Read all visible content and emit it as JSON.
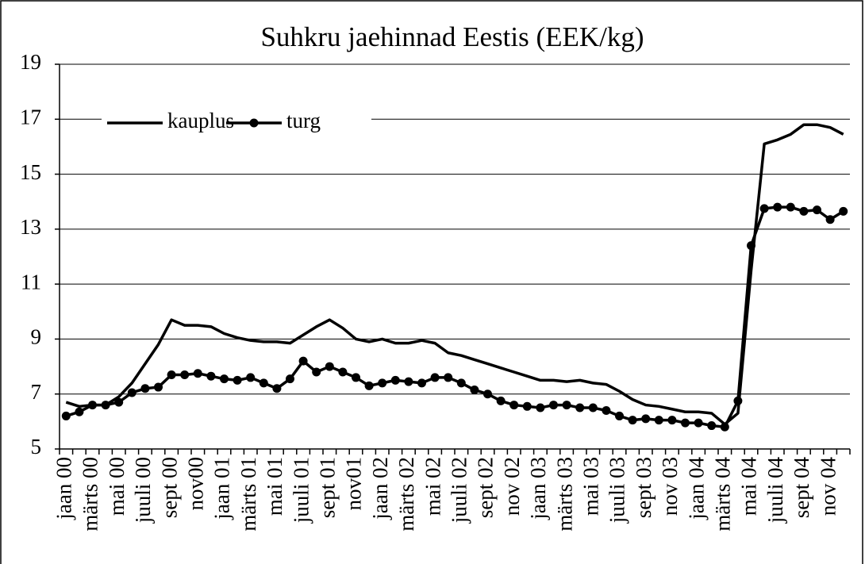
{
  "chart_data": {
    "type": "line",
    "title": "Suhkru jaehinnad Eestis (EEK/kg)",
    "categories": [
      "jaan 00",
      null,
      "märts 00",
      null,
      "mai 00",
      null,
      "juuli 00",
      null,
      "sept 00",
      null,
      "nov00",
      null,
      "jaan 01",
      null,
      "märts 01",
      null,
      "mai 01",
      null,
      "juuli 01",
      null,
      "sept 01",
      null,
      "nov01",
      null,
      "jaan 02",
      null,
      "märts 02",
      null,
      "mai 02",
      null,
      "juuli 02",
      null,
      "sept 02",
      null,
      "nov 02",
      null,
      "jaan 03",
      null,
      "märts 03",
      null,
      "mai 03",
      null,
      "juuli 03",
      null,
      "sept 03",
      null,
      "nov 03",
      null,
      "jaan 04",
      null,
      "märts 04",
      null,
      "mai 04",
      null,
      "juuli 04",
      null,
      "sept 04",
      null,
      "nov 04",
      null
    ],
    "series": [
      {
        "name": "kauplus",
        "color": "#000000",
        "marker": "none",
        "values": [
          6.7,
          6.55,
          6.6,
          6.6,
          6.9,
          7.4,
          8.1,
          8.8,
          9.7,
          9.5,
          9.5,
          9.45,
          9.2,
          9.05,
          8.95,
          8.9,
          8.9,
          8.85,
          9.15,
          9.45,
          9.7,
          9.4,
          9.0,
          8.9,
          9.0,
          8.85,
          8.85,
          8.95,
          8.85,
          8.5,
          8.4,
          8.25,
          8.1,
          7.95,
          7.8,
          7.65,
          7.5,
          7.5,
          7.45,
          7.5,
          7.4,
          7.35,
          7.1,
          6.8,
          6.6,
          6.55,
          6.45,
          6.35,
          6.35,
          6.3,
          5.9,
          6.3,
          11.5,
          16.1,
          16.25,
          16.45,
          16.8,
          16.8,
          16.7,
          16.45
        ]
      },
      {
        "name": "turg",
        "color": "#000000",
        "marker": "circle",
        "values": [
          6.2,
          6.35,
          6.6,
          6.6,
          6.7,
          7.05,
          7.2,
          7.25,
          7.7,
          7.7,
          7.75,
          7.65,
          7.55,
          7.5,
          7.6,
          7.4,
          7.2,
          7.55,
          8.2,
          7.8,
          8.0,
          7.8,
          7.6,
          7.3,
          7.4,
          7.5,
          7.45,
          7.4,
          7.6,
          7.6,
          7.4,
          7.15,
          7.0,
          6.75,
          6.6,
          6.55,
          6.5,
          6.6,
          6.6,
          6.5,
          6.5,
          6.4,
          6.2,
          6.05,
          6.1,
          6.05,
          6.05,
          5.95,
          5.95,
          5.85,
          5.8,
          6.75,
          12.4,
          13.75,
          13.8,
          13.8,
          13.65,
          13.7,
          13.35,
          13.65
        ]
      }
    ],
    "ylim": [
      5,
      19
    ],
    "yticks": [
      5,
      7,
      9,
      11,
      13,
      15,
      17,
      19
    ],
    "grid": true,
    "legend": "upper left"
  }
}
